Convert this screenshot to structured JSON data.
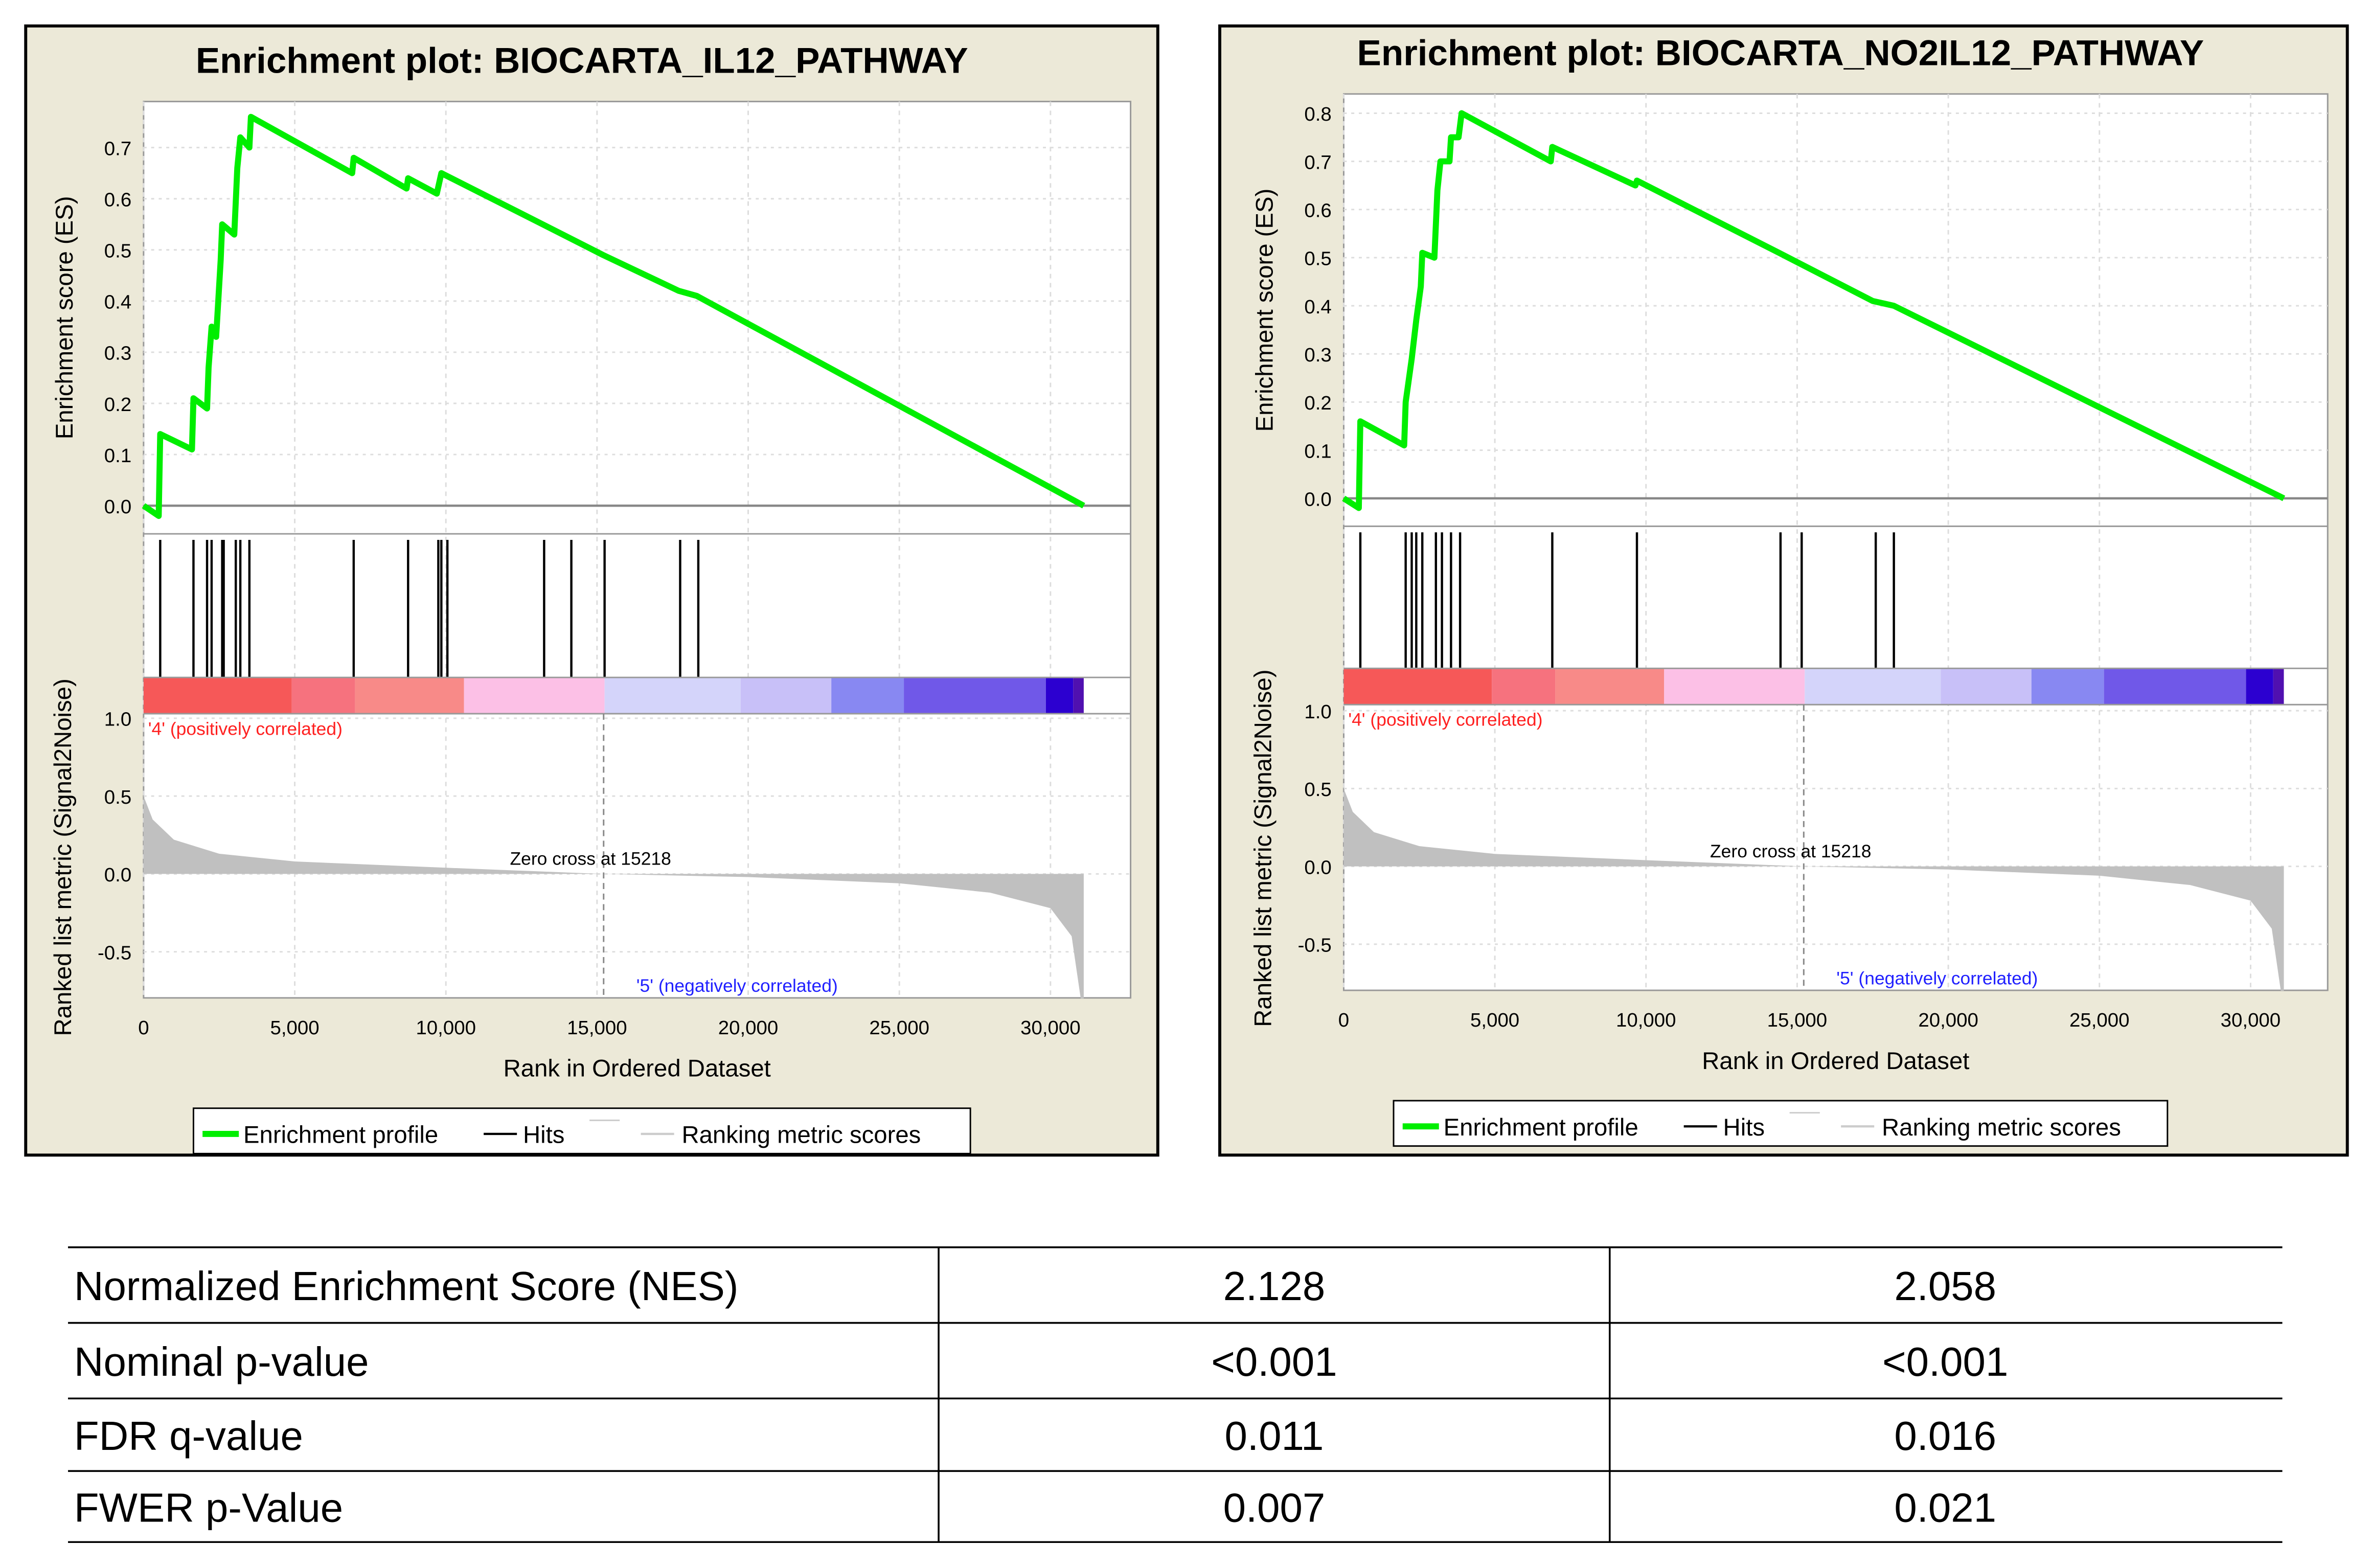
{
  "chart_data": [
    {
      "type": "line",
      "title": "Enrichment plot: BIOCARTA_IL12_PATHWAY",
      "xlabel": "Rank in Ordered Dataset",
      "ylabel_top": "Enrichment score (ES)",
      "ylabel_bottom": "Ranked list metric (Signal2Noise)",
      "xticks": [
        "0",
        "5,000",
        "10,000",
        "15,000",
        "20,000",
        "25,000",
        "30,000"
      ],
      "xtick_values": [
        0,
        5000,
        10000,
        15000,
        20000,
        25000,
        30000
      ],
      "es_ticks": [
        "0.0",
        "0.1",
        "0.2",
        "0.3",
        "0.4",
        "0.5",
        "0.6",
        "0.7"
      ],
      "es_tick_values": [
        0,
        0.1,
        0.2,
        0.3,
        0.4,
        0.5,
        0.6,
        0.7
      ],
      "es_ylim": [
        -0.055,
        0.79
      ],
      "es_profile": [
        [
          0,
          0
        ],
        [
          500,
          -0.02
        ],
        [
          550,
          0.14
        ],
        [
          1600,
          0.11
        ],
        [
          1650,
          0.21
        ],
        [
          2100,
          0.19
        ],
        [
          2150,
          0.27
        ],
        [
          2250,
          0.35
        ],
        [
          2400,
          0.33
        ],
        [
          2550,
          0.48
        ],
        [
          2600,
          0.55
        ],
        [
          3000,
          0.53
        ],
        [
          3100,
          0.66
        ],
        [
          3200,
          0.72
        ],
        [
          3500,
          0.7
        ],
        [
          3550,
          0.76
        ],
        [
          6900,
          0.65
        ],
        [
          6950,
          0.68
        ],
        [
          8700,
          0.62
        ],
        [
          8750,
          0.64
        ],
        [
          9700,
          0.61
        ],
        [
          9850,
          0.65
        ],
        [
          13200,
          0.55
        ],
        [
          15200,
          0.49
        ],
        [
          17700,
          0.42
        ],
        [
          18300,
          0.41
        ],
        [
          31100,
          0
        ]
      ],
      "hits": [
        550,
        1650,
        2100,
        2250,
        2600,
        2650,
        3050,
        3200,
        3500,
        6950,
        8750,
        9750,
        9850,
        10050,
        13250,
        14150,
        15250,
        17750,
        18350
      ],
      "metric_ticks": [
        "1.0",
        "0.5",
        "0.0",
        "-0.5"
      ],
      "metric_tick_values": [
        1.0,
        0.5,
        0.0,
        -0.5
      ],
      "zero_cross_label": "Zero cross at 15218",
      "zero_cross": 15218,
      "pos_label": "'4' (positively correlated)",
      "neg_label": "'5' (negatively correlated)",
      "legend": [
        "Enrichment profile",
        "Hits",
        "Ranking metric scores"
      ]
    },
    {
      "type": "line",
      "title": "Enrichment plot: BIOCARTA_NO2IL12_PATHWAY",
      "xlabel": "Rank in Ordered Dataset",
      "ylabel_top": "Enrichment score (ES)",
      "ylabel_bottom": "Ranked list metric (Signal2Noise)",
      "xticks": [
        "0",
        "5,000",
        "10,000",
        "15,000",
        "20,000",
        "25,000",
        "30,000"
      ],
      "xtick_values": [
        0,
        5000,
        10000,
        15000,
        20000,
        25000,
        30000
      ],
      "es_ticks": [
        "0.0",
        "0.1",
        "0.2",
        "0.3",
        "0.4",
        "0.5",
        "0.6",
        "0.7",
        "0.8"
      ],
      "es_tick_values": [
        0,
        0.1,
        0.2,
        0.3,
        0.4,
        0.5,
        0.6,
        0.7,
        0.8
      ],
      "es_ylim": [
        -0.058,
        0.84
      ],
      "es_profile": [
        [
          0,
          0
        ],
        [
          500,
          -0.02
        ],
        [
          550,
          0.16
        ],
        [
          2000,
          0.11
        ],
        [
          2050,
          0.2
        ],
        [
          2250,
          0.29
        ],
        [
          2400,
          0.37
        ],
        [
          2550,
          0.44
        ],
        [
          2600,
          0.51
        ],
        [
          3000,
          0.5
        ],
        [
          3100,
          0.64
        ],
        [
          3200,
          0.7
        ],
        [
          3500,
          0.7
        ],
        [
          3550,
          0.75
        ],
        [
          3800,
          0.75
        ],
        [
          3900,
          0.8
        ],
        [
          6850,
          0.7
        ],
        [
          6900,
          0.73
        ],
        [
          9650,
          0.65
        ],
        [
          9700,
          0.66
        ],
        [
          14400,
          0.51
        ],
        [
          17500,
          0.41
        ],
        [
          18200,
          0.4
        ],
        [
          31100,
          0
        ]
      ],
      "hits": [
        550,
        2050,
        2250,
        2400,
        2600,
        3050,
        3250,
        3550,
        3850,
        6900,
        9700,
        14450,
        15150,
        17600,
        18200
      ],
      "metric_ticks": [
        "1.0",
        "0.5",
        "0.0",
        "-0.5"
      ],
      "metric_tick_values": [
        1.0,
        0.5,
        0.0,
        -0.5
      ],
      "zero_cross_label": "Zero cross at 15218",
      "zero_cross": 15218,
      "pos_label": "'4' (positively correlated)",
      "neg_label": "'5' (negatively correlated)",
      "legend": [
        "Enrichment profile",
        "Hits",
        "Ranking metric scores"
      ]
    }
  ],
  "ranked_metric_profile": [
    [
      0,
      0.5
    ],
    [
      300,
      0.35
    ],
    [
      1000,
      0.22
    ],
    [
      2500,
      0.13
    ],
    [
      5000,
      0.08
    ],
    [
      10000,
      0.04
    ],
    [
      15218,
      0
    ],
    [
      20000,
      -0.02
    ],
    [
      25000,
      -0.06
    ],
    [
      28000,
      -0.12
    ],
    [
      30000,
      -0.22
    ],
    [
      30700,
      -0.4
    ],
    [
      31000,
      -0.8
    ],
    [
      31100,
      -0.8
    ]
  ],
  "heatmap_bar": [
    {
      "from": 0,
      "to": 4900,
      "color": "#f65858"
    },
    {
      "from": 4900,
      "to": 7000,
      "color": "#f6727e"
    },
    {
      "from": 7000,
      "to": 10600,
      "color": "#f88a88"
    },
    {
      "from": 10600,
      "to": 15250,
      "color": "#fcc0e6"
    },
    {
      "from": 15250,
      "to": 19750,
      "color": "#d4d4fa"
    },
    {
      "from": 19750,
      "to": 22750,
      "color": "#c8c0f8"
    },
    {
      "from": 22750,
      "to": 25150,
      "color": "#8888f2"
    },
    {
      "from": 25150,
      "to": 29850,
      "color": "#7058e8"
    },
    {
      "from": 29850,
      "to": 30750,
      "color": "#2c00d0"
    },
    {
      "from": 30750,
      "to": 31100,
      "color": "#5010b0"
    }
  ],
  "colors": {
    "profile": "#00ee00",
    "panel_bg": "#ece9d8",
    "pos": "#ff2020",
    "neg": "#2020ff",
    "metric": "#c0c0c0"
  },
  "table": {
    "rows": [
      [
        "Normalized Enrichment Score (NES)",
        "2.128",
        "2.058"
      ],
      [
        "Nominal p-value",
        "<0.001",
        "<0.001"
      ],
      [
        "FDR q-value",
        "0.011",
        "0.016"
      ],
      [
        "FWER p-Value",
        "0.007",
        "0.021"
      ]
    ]
  }
}
